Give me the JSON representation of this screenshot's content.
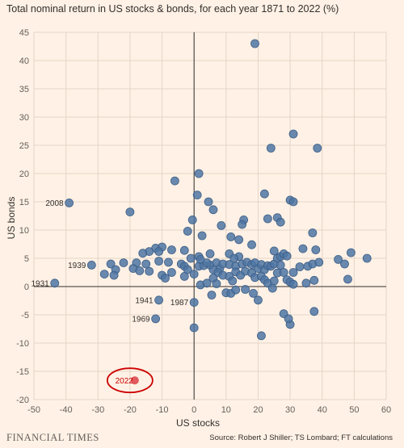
{
  "title": "Total nominal return in US stocks & bonds, for each year 1871 to 2022 (%)",
  "source": "Source: Robert J Shiller; TS Lombard; FT calculations",
  "brand": "FINANCIAL TIMES",
  "colors": {
    "background": "#fff1e5",
    "point": "#4f76a3",
    "point_stroke": "#3d5f88",
    "highlight": "#e05a5e",
    "highlight_ring": "#cc0000",
    "grid": "#e3d6c8",
    "axis": "#33302e"
  },
  "chart_data": {
    "type": "scatter",
    "xlabel": "US stocks",
    "ylabel": "US bonds",
    "xlim": [
      -50,
      60
    ],
    "ylim": [
      -20,
      45
    ],
    "xticks": [
      -50,
      -40,
      -30,
      -20,
      -10,
      0,
      10,
      20,
      30,
      40,
      50,
      60
    ],
    "yticks": [
      -20,
      -15,
      -10,
      -5,
      0,
      5,
      10,
      15,
      20,
      25,
      30,
      35,
      40,
      45
    ],
    "grid": true,
    "labeled_points": [
      {
        "label": "2008",
        "x": -39,
        "y": 14.8
      },
      {
        "label": "1939",
        "x": -32,
        "y": 3.8
      },
      {
        "label": "1931",
        "x": -43.5,
        "y": 0.6
      },
      {
        "label": "1941",
        "x": -11,
        "y": -2.4
      },
      {
        "label": "1987",
        "x": 0,
        "y": -2.8
      },
      {
        "label": "1969",
        "x": -12,
        "y": -5.7
      },
      {
        "label": "2022",
        "x": -18.5,
        "y": -16.6,
        "highlight": true
      }
    ],
    "points": [
      [
        19,
        43
      ],
      [
        31,
        27
      ],
      [
        38.5,
        24.5
      ],
      [
        24,
        24.5
      ],
      [
        1.5,
        20
      ],
      [
        -6,
        18.7
      ],
      [
        22,
        16.4
      ],
      [
        1,
        16.2
      ],
      [
        30,
        15.3
      ],
      [
        31,
        15
      ],
      [
        4.5,
        15
      ],
      [
        6,
        13.6
      ],
      [
        -20,
        13.2
      ],
      [
        -0.5,
        11.8
      ],
      [
        15.5,
        11.8
      ],
      [
        23,
        12
      ],
      [
        26,
        12.2
      ],
      [
        27,
        11.4
      ],
      [
        15,
        11
      ],
      [
        8.5,
        10.8
      ],
      [
        -2,
        9.8
      ],
      [
        37,
        9.5
      ],
      [
        2.5,
        9
      ],
      [
        11.5,
        8.8
      ],
      [
        14,
        8.3
      ],
      [
        18,
        7.4
      ],
      [
        25,
        6.3
      ],
      [
        34,
        6.7
      ],
      [
        38,
        6.5
      ],
      [
        49,
        6
      ],
      [
        11,
        5.8
      ],
      [
        5,
        5.8
      ],
      [
        1.5,
        5.3
      ],
      [
        -3,
        6.4
      ],
      [
        -7,
        6.5
      ],
      [
        -12,
        6.8
      ],
      [
        -14,
        6.2
      ],
      [
        -10,
        7
      ],
      [
        -11,
        6.2
      ],
      [
        -16,
        5.9
      ],
      [
        -22,
        4.2
      ],
      [
        -18,
        4.2
      ],
      [
        -15,
        4
      ],
      [
        -11,
        4.5
      ],
      [
        -8,
        4.3
      ],
      [
        -4,
        4
      ],
      [
        -3,
        3.6
      ],
      [
        -19,
        3.2
      ],
      [
        -26,
        4
      ],
      [
        -28,
        2.2
      ],
      [
        -24.5,
        3
      ],
      [
        -25,
        2
      ],
      [
        -17,
        2.8
      ],
      [
        -14,
        2.7
      ],
      [
        -10,
        2
      ],
      [
        -7,
        2.5
      ],
      [
        -2,
        3
      ],
      [
        1.5,
        3.6
      ],
      [
        3,
        3.7
      ],
      [
        5,
        3.8
      ],
      [
        7,
        4.2
      ],
      [
        8,
        3.2
      ],
      [
        9,
        4
      ],
      [
        11,
        3.9
      ],
      [
        13,
        3.6
      ],
      [
        15,
        4
      ],
      [
        16.5,
        4.3
      ],
      [
        18,
        3.9
      ],
      [
        19,
        4.2
      ],
      [
        20,
        3.2
      ],
      [
        21,
        3.9
      ],
      [
        22,
        3
      ],
      [
        23,
        3.7
      ],
      [
        24,
        3.6
      ],
      [
        25,
        4
      ],
      [
        26,
        5
      ],
      [
        27,
        5.3
      ],
      [
        28,
        5.8
      ],
      [
        29,
        5.4
      ],
      [
        31,
        2.5
      ],
      [
        33,
        3.5
      ],
      [
        35.5,
        3.6
      ],
      [
        37,
        4
      ],
      [
        39,
        4.3
      ],
      [
        45,
        4.8
      ],
      [
        47,
        4
      ],
      [
        54,
        5
      ],
      [
        14,
        5.3
      ],
      [
        12.5,
        5
      ],
      [
        -1,
        5
      ],
      [
        2,
        4.8
      ],
      [
        4,
        4.2
      ],
      [
        6,
        3
      ],
      [
        7.5,
        2.5
      ],
      [
        9,
        2
      ],
      [
        11,
        1.8
      ],
      [
        12,
        1
      ],
      [
        13,
        2.6
      ],
      [
        14.5,
        2
      ],
      [
        16,
        2.7
      ],
      [
        18,
        2.4
      ],
      [
        19,
        1.6
      ],
      [
        21,
        1.8
      ],
      [
        22,
        1.2
      ],
      [
        23,
        0.6
      ],
      [
        25,
        1
      ],
      [
        26,
        2.4
      ],
      [
        27,
        3.8
      ],
      [
        28,
        2.5
      ],
      [
        29,
        1.2
      ],
      [
        30,
        0.8
      ],
      [
        31,
        0.4
      ],
      [
        35,
        0.6
      ],
      [
        37.5,
        1.1
      ],
      [
        48,
        1.3
      ],
      [
        -9,
        1.5
      ],
      [
        -3,
        1.8
      ],
      [
        0,
        2.2
      ],
      [
        2,
        0.3
      ],
      [
        4,
        0.6
      ],
      [
        6,
        1.5
      ],
      [
        7,
        0.5
      ],
      [
        10,
        -1.1
      ],
      [
        11.5,
        -1.2
      ],
      [
        13,
        -0.6
      ],
      [
        16,
        -0.5
      ],
      [
        18.5,
        -1.2
      ],
      [
        20,
        -2.4
      ],
      [
        5.5,
        -1.5
      ],
      [
        24.5,
        -0.3
      ],
      [
        28,
        -4.8
      ],
      [
        30,
        -6.7
      ],
      [
        29.5,
        -5.7
      ],
      [
        37.5,
        -4.4
      ],
      [
        21,
        -8.7
      ],
      [
        0,
        -7.3
      ]
    ]
  }
}
